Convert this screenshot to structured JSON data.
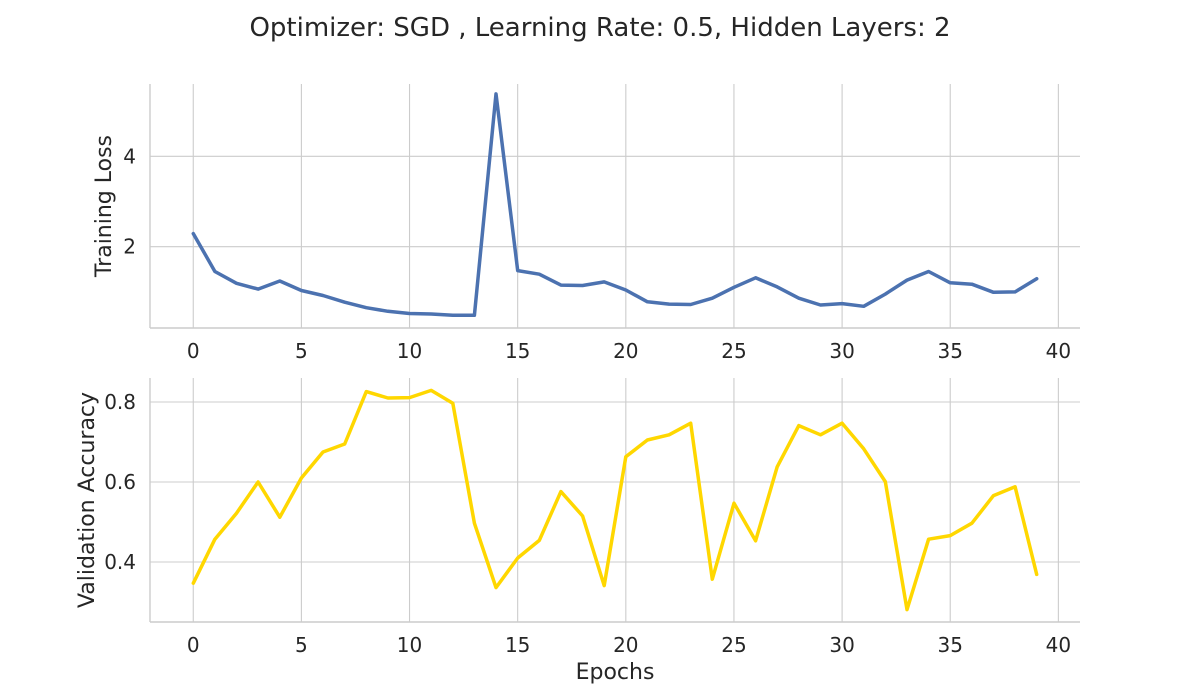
{
  "chart_data": {
    "title": "Optimizer: SGD , Learning Rate: 0.5, Hidden Layers: 2",
    "xlabel": "Epochs",
    "xlim": [
      -2,
      41
    ],
    "x_ticks": [
      "0",
      "5",
      "10",
      "15",
      "20",
      "25",
      "30",
      "35",
      "40"
    ],
    "colors": {
      "loss": "#4c72b0",
      "accuracy": "#ffd700"
    },
    "panels": [
      {
        "type": "line",
        "ylabel": "Training Loss",
        "ylim": [
          0.2,
          5.6
        ],
        "y_ticks": [
          "2",
          "4"
        ],
        "series": [
          {
            "name": "Training Loss",
            "x": [
              0,
              1,
              2,
              3,
              4,
              5,
              6,
              7,
              8,
              9,
              10,
              11,
              12,
              13,
              14,
              15,
              16,
              17,
              18,
              19,
              20,
              21,
              22,
              23,
              24,
              25,
              26,
              27,
              28,
              29,
              30,
              31,
              32,
              33,
              34,
              35,
              36,
              37,
              38,
              39
            ],
            "values": [
              2.29,
              1.45,
              1.19,
              1.06,
              1.24,
              1.03,
              0.92,
              0.77,
              0.65,
              0.57,
              0.52,
              0.51,
              0.48,
              0.48,
              5.38,
              1.47,
              1.39,
              1.15,
              1.14,
              1.22,
              1.04,
              0.78,
              0.73,
              0.72,
              0.86,
              1.1,
              1.31,
              1.11,
              0.86,
              0.71,
              0.74,
              0.68,
              0.95,
              1.26,
              1.45,
              1.2,
              1.17,
              0.99,
              1.0,
              1.29
            ]
          }
        ]
      },
      {
        "type": "line",
        "ylabel": "Validation Accuracy",
        "ylim": [
          0.25,
          0.86
        ],
        "y_ticks": [
          "0.4",
          "0.6",
          "0.8"
        ],
        "series": [
          {
            "name": "Validation Accuracy",
            "x": [
              0,
              1,
              2,
              3,
              4,
              5,
              6,
              7,
              8,
              9,
              10,
              11,
              12,
              13,
              14,
              15,
              16,
              17,
              18,
              19,
              20,
              21,
              22,
              23,
              24,
              25,
              26,
              27,
              28,
              29,
              30,
              31,
              32,
              33,
              34,
              35,
              36,
              37,
              38,
              39
            ],
            "values": [
              0.347,
              0.457,
              0.522,
              0.6,
              0.512,
              0.61,
              0.675,
              0.695,
              0.826,
              0.81,
              0.811,
              0.829,
              0.797,
              0.497,
              0.336,
              0.41,
              0.454,
              0.576,
              0.515,
              0.341,
              0.663,
              0.705,
              0.718,
              0.747,
              0.357,
              0.547,
              0.453,
              0.638,
              0.741,
              0.718,
              0.747,
              0.683,
              0.601,
              0.281,
              0.457,
              0.466,
              0.497,
              0.566,
              0.588,
              0.369
            ]
          }
        ]
      }
    ]
  }
}
